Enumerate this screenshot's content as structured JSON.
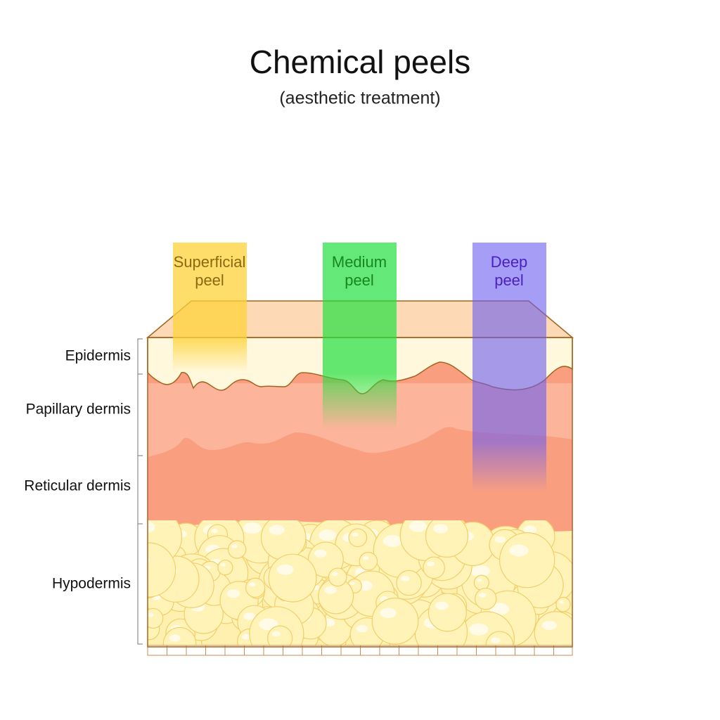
{
  "header": {
    "title": "Chemical peels",
    "subtitle": "(aesthetic treatment)"
  },
  "layers": [
    {
      "label": "Epidermis"
    },
    {
      "label": "Papillary dermis"
    },
    {
      "label": "Reticular dermis"
    },
    {
      "label": "Hypodermis"
    }
  ],
  "peels": [
    {
      "lines": [
        "Superficial",
        "peel"
      ]
    },
    {
      "lines": [
        "Medium",
        "peel"
      ]
    },
    {
      "lines": [
        "Deep",
        "peel"
      ]
    }
  ]
}
